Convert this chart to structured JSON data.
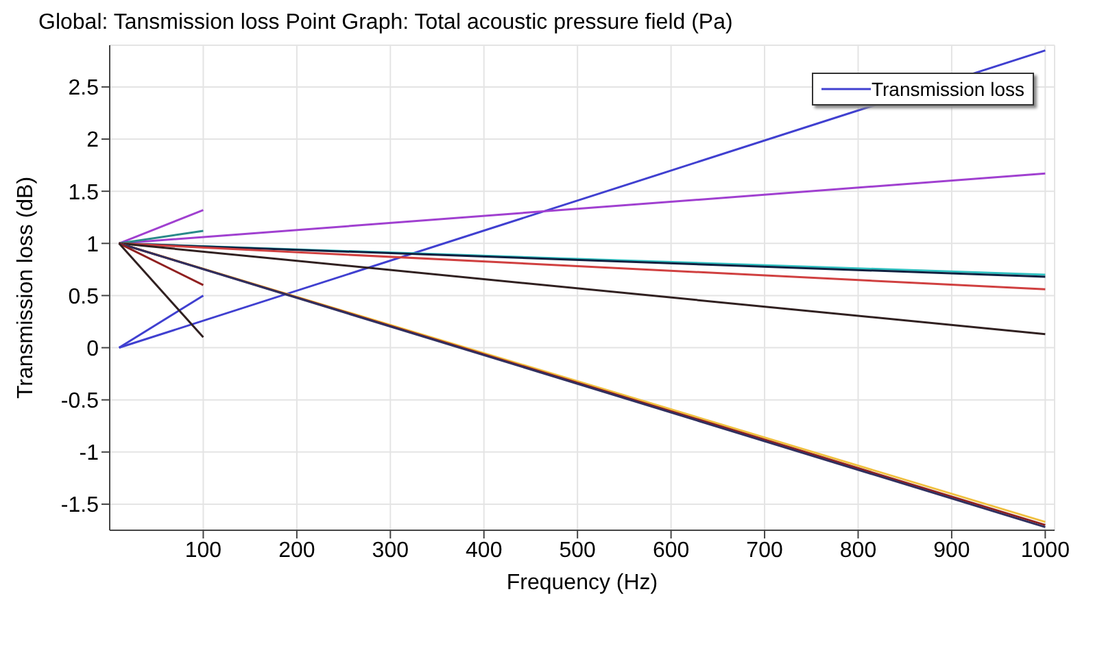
{
  "chart_data": {
    "type": "line",
    "title": "Global: Tansmission loss Point Graph: Total acoustic pressure field (Pa)",
    "xlabel": "Frequency (Hz)",
    "ylabel": "Transmission loss (dB)",
    "xlim": [
      0,
      1010
    ],
    "xticks": [
      100,
      200,
      300,
      400,
      500,
      600,
      700,
      800,
      900,
      1000
    ],
    "ylim": [
      -1.75,
      2.9
    ],
    "yticks": [
      -1.5,
      -1,
      -0.5,
      0,
      0.5,
      1,
      1.5,
      2,
      2.5
    ],
    "grid": true,
    "legend": "top right",
    "marker": "none",
    "line_style": "solid",
    "series": [
      {
        "name": "Transmission loss",
        "color": "#4040d0",
        "x": [
          10,
          1000
        ],
        "values": [
          0,
          2.85
        ]
      },
      {
        "color": "#4040d0",
        "x": [
          10,
          100
        ],
        "values": [
          0,
          0.5
        ]
      },
      {
        "color": "#a040d0",
        "x": [
          10,
          1000
        ],
        "values": [
          1,
          1.67
        ]
      },
      {
        "color": "#a040d0",
        "x": [
          10,
          100
        ],
        "values": [
          1,
          1.32
        ]
      },
      {
        "color": "#2a8a8a",
        "x": [
          10,
          100
        ],
        "values": [
          1,
          1.12
        ]
      },
      {
        "color": "#30c0c0",
        "x": [
          10,
          1000
        ],
        "values": [
          1,
          0.7
        ]
      },
      {
        "color": "#102040",
        "x": [
          10,
          1000
        ],
        "values": [
          1,
          0.68
        ]
      },
      {
        "color": "#d04040",
        "x": [
          10,
          1000
        ],
        "values": [
          1,
          0.56
        ]
      },
      {
        "color": "#302020",
        "x": [
          10,
          1000
        ],
        "values": [
          1,
          0.13
        ]
      },
      {
        "color": "#f0c040",
        "x": [
          10,
          1000
        ],
        "values": [
          1,
          -1.67
        ]
      },
      {
        "color": "#902020",
        "x": [
          10,
          1000
        ],
        "values": [
          1,
          -1.7
        ]
      },
      {
        "color": "#303060",
        "x": [
          10,
          1000
        ],
        "values": [
          1,
          -1.72
        ]
      },
      {
        "color": "#902020",
        "x": [
          10,
          100
        ],
        "values": [
          1,
          0.6
        ]
      },
      {
        "color": "#302020",
        "x": [
          10,
          100
        ],
        "values": [
          1,
          0.1
        ]
      }
    ]
  }
}
